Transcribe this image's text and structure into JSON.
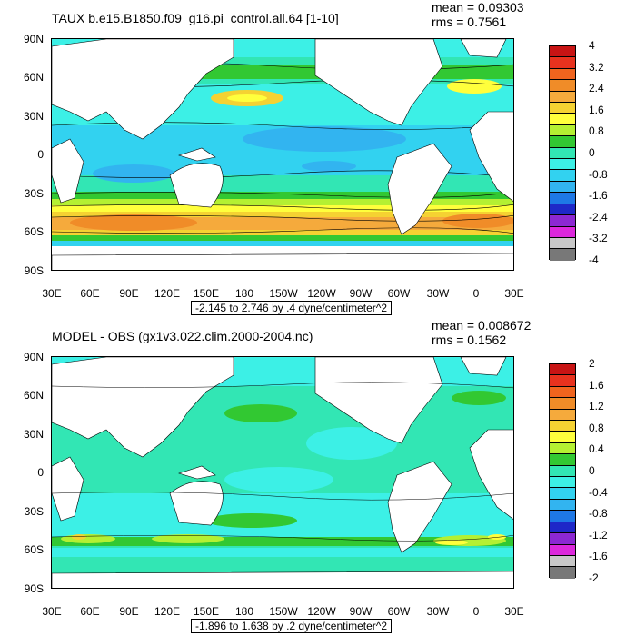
{
  "top_panel": {
    "title": "TAUX b.e15.B1850.f09_g16.pi_control.all.64 [1-10]",
    "mean": "mean = 0.09303",
    "rms": "rms = 0.7561",
    "range": "-2.145 to 2.746 by .4 dyne/centimeter^2",
    "colorbar": {
      "labels": [
        "4",
        "3.2",
        "2.4",
        "1.6",
        "0.8",
        "0",
        "-0.8",
        "-1.6",
        "-2.4",
        "-3.2",
        "-4"
      ],
      "colors": [
        "#c81414",
        "#e8321e",
        "#f0641e",
        "#f08c28",
        "#f5aa3c",
        "#f5d232",
        "#ffff3c",
        "#b4f032",
        "#32c832",
        "#32e6b4",
        "#3cf0e6",
        "#32d2f0",
        "#32b4f0",
        "#1e78e6",
        "#1e28c8",
        "#8c28d2",
        "#dc28dc",
        "#c8c8c8",
        "#787878"
      ]
    }
  },
  "bottom_panel": {
    "title": "MODEL - OBS (gx1v3.022.clim.2000-2004.nc)",
    "mean": "mean = 0.008672",
    "rms": "rms = 0.1562",
    "range": "-1.896 to 1.638 by .2 dyne/centimeter^2",
    "colorbar": {
      "labels": [
        "2",
        "1.6",
        "1.2",
        "0.8",
        "0.4",
        "0",
        "-0.4",
        "-0.8",
        "-1.2",
        "-1.6",
        "-2"
      ],
      "colors": [
        "#c81414",
        "#e8321e",
        "#f0641e",
        "#f08c28",
        "#f5aa3c",
        "#f5d232",
        "#ffff3c",
        "#b4f032",
        "#32c832",
        "#32e6b4",
        "#3cf0e6",
        "#32d2f0",
        "#32b4f0",
        "#1e78e6",
        "#1e28c8",
        "#8c28d2",
        "#dc28dc",
        "#c8c8c8",
        "#787878"
      ]
    }
  },
  "axes": {
    "lat_labels": [
      "90N",
      "60N",
      "30N",
      "0",
      "30S",
      "60S",
      "90S"
    ],
    "lon_labels": [
      "30E",
      "60E",
      "90E",
      "120E",
      "150E",
      "180",
      "150W",
      "120W",
      "90W",
      "60W",
      "30W",
      "0",
      "30E"
    ]
  }
}
